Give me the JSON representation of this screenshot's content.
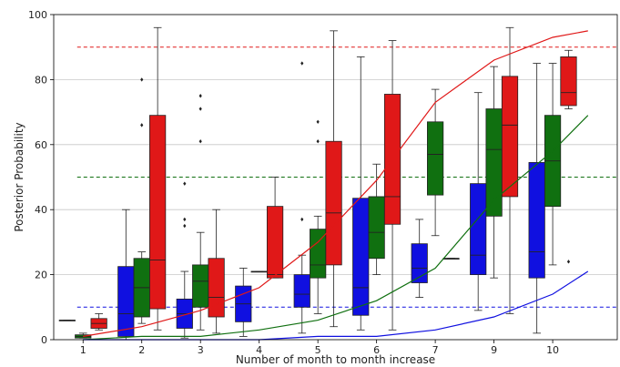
{
  "chart_data": {
    "type": "box",
    "title": "",
    "xlabel": "Number of month to month increase",
    "ylabel": "Posterior Probability",
    "ylim": [
      0,
      100
    ],
    "yticks": [
      0,
      20,
      40,
      60,
      80,
      100
    ],
    "grid": "horizontal",
    "legend": "none",
    "categories": [
      "1",
      "2",
      "3",
      "4",
      "5",
      "6",
      "7",
      "9",
      "10"
    ],
    "colors": {
      "blue": "#1010e0",
      "green": "#107010",
      "red": "#e01818"
    },
    "boxes": [
      {
        "category": "1",
        "color": "blue",
        "min": 6,
        "q1": 6,
        "median": 6,
        "q3": 6,
        "max": 6,
        "outliers": []
      },
      {
        "category": "1",
        "color": "green",
        "min": 0.5,
        "q1": 0.5,
        "median": 1,
        "q3": 1.5,
        "max": 2,
        "outliers": []
      },
      {
        "category": "1",
        "color": "red",
        "min": 3,
        "q1": 3.5,
        "median": 5,
        "q3": 6.5,
        "max": 8,
        "outliers": []
      },
      {
        "category": "2",
        "color": "blue",
        "min": 0,
        "q1": 1,
        "median": 8,
        "q3": 22.5,
        "max": 40,
        "outliers": []
      },
      {
        "category": "2",
        "color": "green",
        "min": 5,
        "q1": 7,
        "median": 16,
        "q3": 25,
        "max": 27,
        "outliers": [
          66,
          80
        ]
      },
      {
        "category": "2",
        "color": "red",
        "min": 3,
        "q1": 9.5,
        "median": 24.5,
        "q3": 69,
        "max": 96,
        "outliers": []
      },
      {
        "category": "3",
        "color": "blue",
        "min": 0.5,
        "q1": 3.5,
        "median": 8,
        "q3": 12.5,
        "max": 21,
        "outliers": [
          35,
          37,
          48
        ]
      },
      {
        "category": "3",
        "color": "green",
        "min": 3,
        "q1": 10,
        "median": 18,
        "q3": 23,
        "max": 33,
        "outliers": [
          61,
          71,
          75
        ]
      },
      {
        "category": "3",
        "color": "red",
        "min": 2,
        "q1": 7,
        "median": 13,
        "q3": 25,
        "max": 40,
        "outliers": []
      },
      {
        "category": "4",
        "color": "blue",
        "min": 1,
        "q1": 5.5,
        "median": 11,
        "q3": 16.5,
        "max": 22,
        "outliers": []
      },
      {
        "category": "4",
        "color": "green",
        "min": 21,
        "q1": 21,
        "median": 21,
        "q3": 21,
        "max": 21,
        "outliers": []
      },
      {
        "category": "4",
        "color": "red",
        "min": 19,
        "q1": 19,
        "median": 20,
        "q3": 41,
        "max": 50,
        "outliers": []
      },
      {
        "category": "5",
        "color": "blue",
        "min": 2,
        "q1": 10,
        "median": 14,
        "q3": 20,
        "max": 26,
        "outliers": [
          37,
          85
        ]
      },
      {
        "category": "5",
        "color": "green",
        "min": 8,
        "q1": 19,
        "median": 23,
        "q3": 34,
        "max": 38,
        "outliers": [
          61,
          67
        ]
      },
      {
        "category": "5",
        "color": "red",
        "min": 4,
        "q1": 23,
        "median": 39,
        "q3": 61,
        "max": 95,
        "outliers": []
      },
      {
        "category": "6",
        "color": "blue",
        "min": 3,
        "q1": 7.5,
        "median": 16,
        "q3": 43.5,
        "max": 87,
        "outliers": []
      },
      {
        "category": "6",
        "color": "green",
        "min": 20,
        "q1": 25,
        "median": 33,
        "q3": 44,
        "max": 54,
        "outliers": []
      },
      {
        "category": "6",
        "color": "red",
        "min": 3,
        "q1": 35.5,
        "median": 44,
        "q3": 75.5,
        "max": 92,
        "outliers": []
      },
      {
        "category": "7",
        "color": "blue",
        "min": 13,
        "q1": 17.5,
        "median": 22,
        "q3": 29.5,
        "max": 37,
        "outliers": []
      },
      {
        "category": "7",
        "color": "green",
        "min": 32,
        "q1": 44.5,
        "median": 57,
        "q3": 67,
        "max": 77,
        "outliers": []
      },
      {
        "category": "7",
        "color": "red",
        "min": 25,
        "q1": 25,
        "median": 25,
        "q3": 25,
        "max": 25,
        "outliers": []
      },
      {
        "category": "9",
        "color": "blue",
        "min": 9,
        "q1": 20,
        "median": 26,
        "q3": 48,
        "max": 76,
        "outliers": []
      },
      {
        "category": "9",
        "color": "green",
        "min": 19,
        "q1": 38,
        "median": 58.5,
        "q3": 71,
        "max": 84,
        "outliers": []
      },
      {
        "category": "9",
        "color": "red",
        "min": 8,
        "q1": 44,
        "median": 66,
        "q3": 81,
        "max": 96,
        "outliers": []
      },
      {
        "category": "10",
        "color": "blue",
        "min": 2,
        "q1": 19,
        "median": 27,
        "q3": 54.5,
        "max": 85,
        "outliers": []
      },
      {
        "category": "10",
        "color": "green",
        "min": 23,
        "q1": 41,
        "median": 55,
        "q3": 69,
        "max": 85,
        "outliers": []
      },
      {
        "category": "10",
        "color": "red",
        "min": 71,
        "q1": 72,
        "median": 76,
        "q3": 87,
        "max": 89,
        "outliers": [
          24
        ]
      }
    ],
    "reference_lines": [
      {
        "color": "red",
        "y": 90,
        "style": "dashed"
      },
      {
        "color": "green",
        "y": 50,
        "style": "dashed"
      },
      {
        "color": "blue",
        "y": 10,
        "style": "dashed"
      }
    ],
    "curves": [
      {
        "color": "red",
        "points": [
          [
            1,
            1
          ],
          [
            2,
            4
          ],
          [
            3,
            9
          ],
          [
            4,
            16
          ],
          [
            5,
            30
          ],
          [
            6,
            49
          ],
          [
            7,
            73
          ],
          [
            9,
            86
          ],
          [
            10,
            93
          ],
          [
            10.6,
            95
          ]
        ]
      },
      {
        "color": "green",
        "points": [
          [
            1,
            0
          ],
          [
            2,
            1
          ],
          [
            3,
            1
          ],
          [
            4,
            3
          ],
          [
            5,
            6
          ],
          [
            6,
            12
          ],
          [
            7,
            22
          ],
          [
            9,
            43
          ],
          [
            10,
            58
          ],
          [
            10.6,
            69
          ]
        ]
      },
      {
        "color": "blue",
        "points": [
          [
            1,
            0
          ],
          [
            2,
            0
          ],
          [
            3,
            0
          ],
          [
            4,
            0
          ],
          [
            5,
            1
          ],
          [
            6,
            1
          ],
          [
            7,
            3
          ],
          [
            9,
            7
          ],
          [
            10,
            14
          ],
          [
            10.6,
            21
          ]
        ]
      }
    ]
  }
}
